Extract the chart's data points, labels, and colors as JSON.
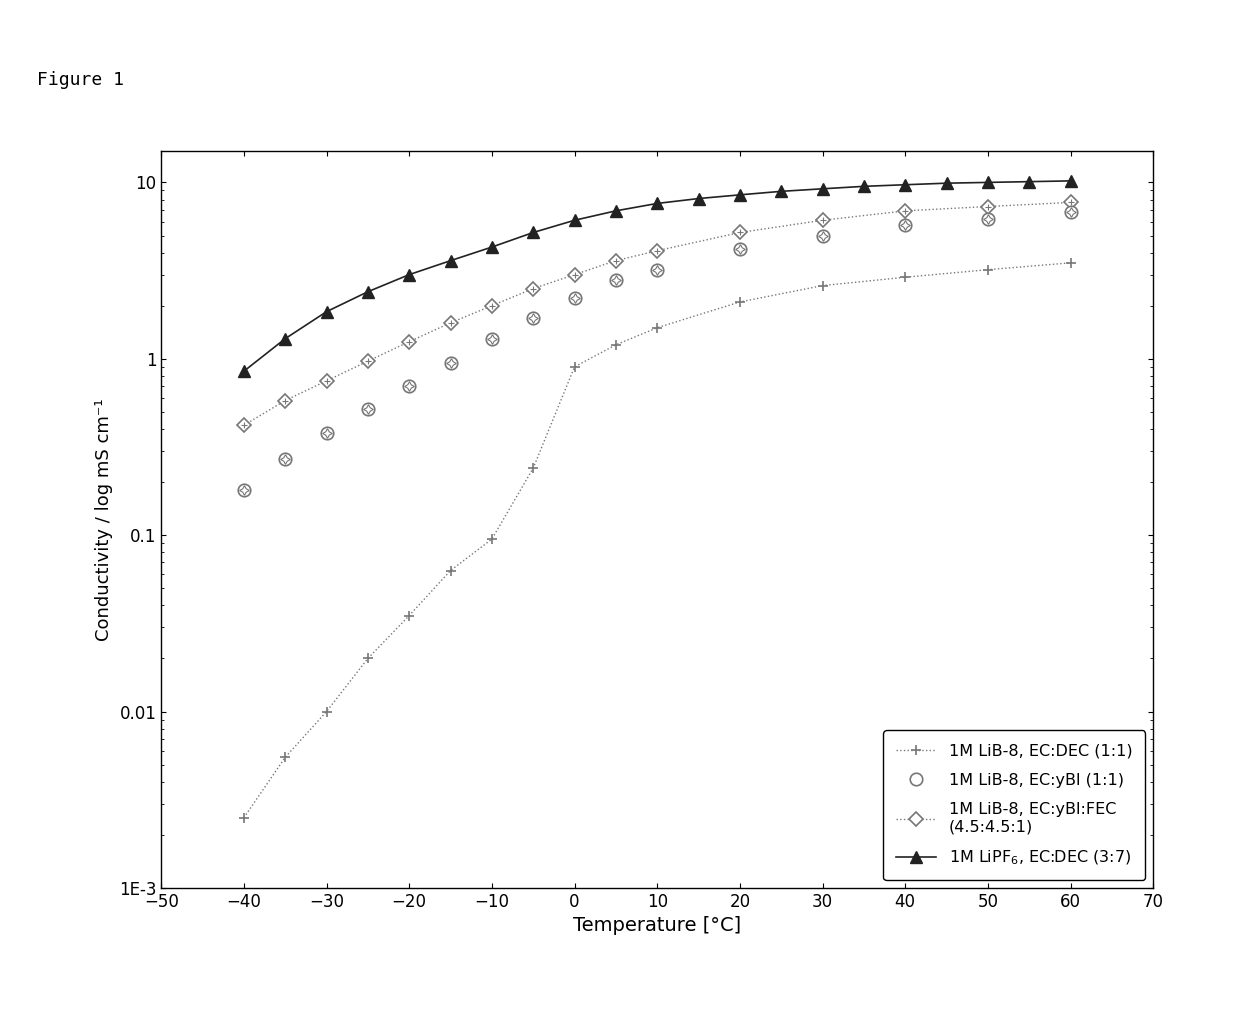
{
  "xlabel": "Temperature [°C]",
  "ylabel": "Conductivity / log mS cm⁻¹",
  "xlim": [
    -50,
    70
  ],
  "ylim_log": [
    0.001,
    15
  ],
  "xticks": [
    -50,
    -40,
    -30,
    -20,
    -10,
    0,
    10,
    20,
    30,
    40,
    50,
    60,
    70
  ],
  "series": [
    {
      "label": "1M LiB-8, EC:DEC (1:1)",
      "color": "#777777",
      "linestyle": "dotted",
      "marker": "+",
      "x": [
        -40,
        -35,
        -30,
        -25,
        -20,
        -15,
        -10,
        -5,
        0,
        5,
        10,
        20,
        30,
        40,
        50,
        60
      ],
      "y": [
        0.0025,
        0.0055,
        0.01,
        0.02,
        0.035,
        0.063,
        0.095,
        0.24,
        0.9,
        1.2,
        1.5,
        2.1,
        2.6,
        2.9,
        3.2,
        3.5
      ]
    },
    {
      "label": "1M LiB-8, EC:yBl (1:1)",
      "color": "#777777",
      "linestyle": "none",
      "marker": "circle_hash",
      "x": [
        -40,
        -35,
        -30,
        -25,
        -20,
        -15,
        -10,
        -5,
        0,
        5,
        10,
        20,
        30,
        40,
        50,
        60
      ],
      "y": [
        0.18,
        0.27,
        0.38,
        0.52,
        0.7,
        0.95,
        1.3,
        1.7,
        2.2,
        2.8,
        3.2,
        4.2,
        5.0,
        5.7,
        6.2,
        6.8
      ]
    },
    {
      "label": "1M LiB-8, EC:yBl:FEC\n(4.5:4.5:1)",
      "color": "#777777",
      "linestyle": "dotted",
      "marker": "diamond_hash",
      "x": [
        -40,
        -35,
        -30,
        -25,
        -20,
        -15,
        -10,
        -5,
        0,
        5,
        10,
        20,
        30,
        40,
        50,
        60
      ],
      "y": [
        0.42,
        0.58,
        0.75,
        0.97,
        1.25,
        1.6,
        2.0,
        2.5,
        3.0,
        3.6,
        4.1,
        5.2,
        6.1,
        6.9,
        7.3,
        7.7
      ]
    },
    {
      "label": "1M LiPF$_6$, EC:DEC (3:7)",
      "color": "#222222",
      "linestyle": "solid",
      "marker": "triangle",
      "x": [
        -40,
        -35,
        -30,
        -25,
        -20,
        -15,
        -10,
        -5,
        0,
        5,
        10,
        15,
        20,
        25,
        30,
        35,
        40,
        45,
        50,
        55,
        60
      ],
      "y": [
        0.85,
        1.3,
        1.85,
        2.4,
        3.0,
        3.6,
        4.3,
        5.2,
        6.1,
        6.9,
        7.6,
        8.1,
        8.5,
        8.9,
        9.2,
        9.5,
        9.7,
        9.9,
        10.0,
        10.1,
        10.2
      ]
    }
  ],
  "background_color": "#ffffff",
  "figure_label": "Figure 1"
}
